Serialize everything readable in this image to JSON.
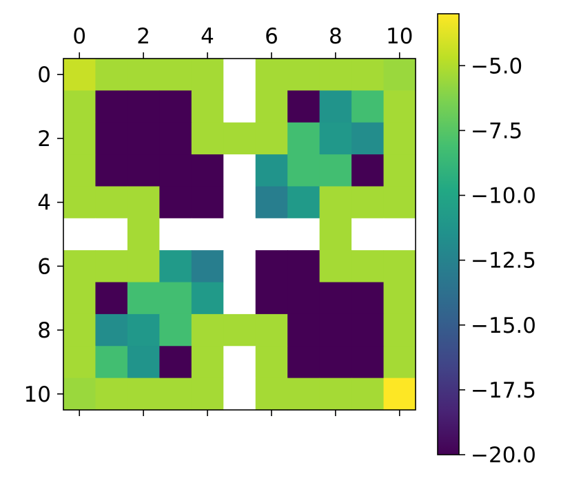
{
  "chart_data": {
    "type": "heatmap",
    "title": "",
    "xlabel": "",
    "ylabel": "",
    "x_ticks": [
      "0",
      "2",
      "4",
      "6",
      "8",
      "10"
    ],
    "y_ticks": [
      "0",
      "2",
      "4",
      "6",
      "8",
      "10"
    ],
    "xlim": [
      -0.5,
      10.5
    ],
    "ylim": [
      10.5,
      -0.5
    ],
    "x_axis_position": "top",
    "grid": false,
    "colormap": "viridis",
    "missing_color": "#ffffff",
    "color_range": [
      -20.0,
      -3.0
    ],
    "colorbar": {
      "position": "right",
      "ticks": [
        "−5.0",
        "−7.5",
        "−10.0",
        "−12.5",
        "−15.0",
        "−17.5",
        "−20.0"
      ],
      "tick_values": [
        -5.0,
        -7.5,
        -10.0,
        -12.5,
        -15.0,
        -17.5,
        -20.0
      ]
    },
    "values": [
      [
        -4.4,
        -5.3,
        -5.3,
        -5.3,
        -5.3,
        null,
        -5.3,
        -5.3,
        -5.3,
        -5.3,
        -5.6
      ],
      [
        -5.3,
        -20,
        -20,
        -20,
        -5.3,
        null,
        -5.3,
        -20,
        -11.3,
        -8.2,
        -5.3
      ],
      [
        -5.3,
        -20,
        -20,
        -20,
        -5.3,
        -5.3,
        -5.3,
        -8.2,
        -11.0,
        -11.8,
        -5.3
      ],
      [
        -5.3,
        -20,
        -20,
        -20,
        -20,
        null,
        -11.3,
        -8.2,
        -8.2,
        -20,
        -5.3
      ],
      [
        -5.3,
        -5.3,
        -5.3,
        -20,
        -20,
        null,
        -12.8,
        -10.8,
        -5.3,
        -5.3,
        -5.3
      ],
      [
        null,
        null,
        -5.3,
        null,
        null,
        null,
        null,
        null,
        -5.3,
        null,
        null
      ],
      [
        -5.3,
        -5.3,
        -5.3,
        -10.8,
        -12.8,
        null,
        -20,
        -20,
        -5.3,
        -5.3,
        -5.3
      ],
      [
        -5.3,
        -20,
        -8.2,
        -8.2,
        -10.8,
        null,
        -20,
        -20,
        -20,
        -20,
        -5.3
      ],
      [
        -5.3,
        -11.8,
        -11.0,
        -8.2,
        -5.3,
        -5.3,
        -5.3,
        -20,
        -20,
        -20,
        -5.3
      ],
      [
        -5.3,
        -8.2,
        -11.3,
        -20,
        -5.3,
        null,
        -5.3,
        -20,
        -20,
        -20,
        -5.3
      ],
      [
        -5.6,
        -5.3,
        -5.3,
        -5.3,
        -5.3,
        null,
        -5.3,
        -5.3,
        -5.3,
        -5.3,
        -3.0
      ]
    ]
  }
}
